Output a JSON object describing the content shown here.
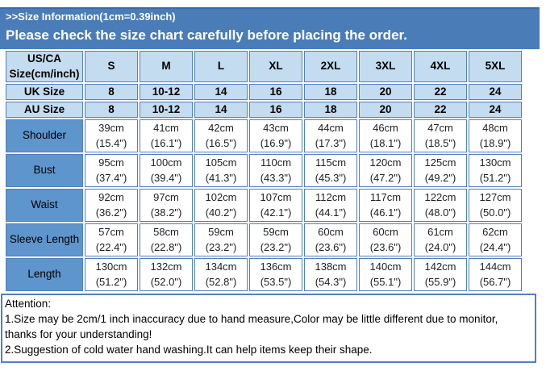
{
  "banner": {
    "title": ">>Size Information(1cm=0.39inch)",
    "warning": "Please check the size chart carefully before placing the order."
  },
  "table": {
    "corner": "US/CA\nSize(cm/inch)",
    "sizes": [
      "S",
      "M",
      "L",
      "XL",
      "2XL",
      "3XL",
      "4XL",
      "5XL"
    ],
    "rows": [
      {
        "label": "UK Size",
        "values": [
          "8",
          "10-12",
          "14",
          "16",
          "18",
          "20",
          "22",
          "24"
        ]
      },
      {
        "label": "AU Size",
        "values": [
          "8",
          "10-12",
          "14",
          "16",
          "18",
          "20",
          "22",
          "24"
        ]
      },
      {
        "label": "Shoulder",
        "values": [
          "39cm\n(15.4\")",
          "41cm\n(16.1\")",
          "42cm\n(16.5\")",
          "43cm\n(16.9\")",
          "44cm\n(17.3\")",
          "46cm\n(18.1\")",
          "47cm\n(18.5\")",
          "48cm\n(18.9\")"
        ]
      },
      {
        "label": "Bust",
        "values": [
          "95cm\n(37.4\")",
          "100cm\n(39.4\")",
          "105cm\n(41.3\")",
          "110cm\n(43.3\")",
          "115cm\n(45.3\")",
          "120cm\n(47.2\")",
          "125cm\n(49.2\")",
          "130cm\n(51.2\")"
        ]
      },
      {
        "label": "Waist",
        "values": [
          "92cm\n(36.2\")",
          "97cm\n(38.2\")",
          "102cm\n(40.2\")",
          "107cm\n(42.1\")",
          "112cm\n(44.1\")",
          "117cm\n(46.1\")",
          "122cm\n(48.0\")",
          "127cm\n(50.0\")"
        ]
      },
      {
        "label": "Sleeve Length",
        "values": [
          "57cm\n(22.4\")",
          "58cm\n(22.8\")",
          "59cm\n(23.2\")",
          "59cm\n(23.2\")",
          "60cm\n(23.6\")",
          "60cm\n(23.6\")",
          "61cm\n(24.0\")",
          "62cm\n(24.4\")"
        ]
      },
      {
        "label": "Length",
        "values": [
          "130cm\n(51.2\")",
          "132cm\n(52.0\")",
          "134cm\n(52.8\")",
          "136cm\n(53.5\")",
          "138cm\n(54.3\")",
          "140cm\n(55.1\")",
          "142cm\n(55.9\")",
          "144cm\n(56.7\")"
        ]
      }
    ]
  },
  "attention": {
    "title": "Attention:",
    "notes": [
      "1.Size may be 2cm/1 inch inaccuracy due to hand measure,Color may be little different due to monitor, thanks for your understanding!",
      "2.Suggestion of cold water hand washing.It can help items keep their shape."
    ]
  },
  "colors": {
    "banner_bg": "#4a7cb8",
    "header_bg": "#c4dcf0",
    "label_bg": "#5e95cc",
    "grid": "#4f81bd",
    "banner_text": "#ffffff",
    "cell_text": "#1f1f1f"
  }
}
